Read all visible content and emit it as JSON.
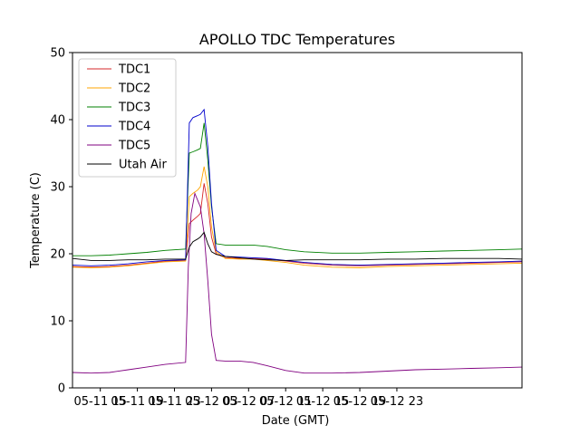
{
  "chart_data": {
    "type": "line",
    "title": "APOLLO TDC Temperatures",
    "xlabel": "Date (GMT)",
    "ylabel": "Temperature (C)",
    "xlim": [
      12,
      60.5
    ],
    "ylim": [
      0,
      50
    ],
    "x_unit": "hours since 05-11 00:00 GMT",
    "x_ticks": [
      {
        "value": 15,
        "label": "05-11 15"
      },
      {
        "value": 19,
        "label": "05-11 19"
      },
      {
        "value": 23,
        "label": "05-11 23"
      },
      {
        "value": 27,
        "label": "05-12 03"
      },
      {
        "value": 31,
        "label": "05-12 07"
      },
      {
        "value": 35,
        "label": "05-12 11"
      },
      {
        "value": 39,
        "label": "05-12 15"
      },
      {
        "value": 43,
        "label": "05-12 19"
      },
      {
        "value": 47,
        "label": "05-12 23"
      }
    ],
    "y_ticks": [
      0,
      10,
      20,
      30,
      40,
      50
    ],
    "legend_position": "top-left",
    "series": [
      {
        "name": "TDC1",
        "color": "#d62728",
        "x": [
          12,
          14,
          16,
          18,
          20,
          22,
          24.2,
          24.6,
          25,
          25.5,
          25.8,
          26.2,
          26.6,
          27,
          27.5,
          28.5,
          30,
          31.5,
          33,
          35,
          37,
          40,
          43,
          46,
          49,
          52,
          55,
          58,
          60.5
        ],
        "values": [
          18.1,
          18.0,
          18.1,
          18.3,
          18.6,
          18.9,
          19.0,
          24.5,
          25.0,
          25.6,
          26.0,
          30.5,
          27.5,
          22.5,
          20.0,
          19.4,
          19.3,
          19.3,
          19.2,
          18.9,
          18.6,
          18.3,
          18.2,
          18.3,
          18.4,
          18.5,
          18.6,
          18.7,
          18.8
        ]
      },
      {
        "name": "TDC2",
        "color": "#ffa500",
        "x": [
          12,
          14,
          16,
          18,
          20,
          22,
          24.2,
          24.6,
          25,
          25.5,
          25.8,
          26.2,
          26.6,
          27,
          27.5,
          28.5,
          30,
          31.5,
          33,
          35,
          37,
          40,
          43,
          46,
          49,
          52,
          55,
          58,
          60.5
        ],
        "values": [
          18.0,
          17.9,
          18.0,
          18.2,
          18.5,
          18.8,
          18.9,
          28.5,
          29.0,
          29.5,
          30.0,
          33.0,
          30.0,
          24.0,
          20.3,
          19.3,
          19.2,
          19.2,
          19.0,
          18.7,
          18.3,
          18.0,
          17.9,
          18.1,
          18.2,
          18.3,
          18.4,
          18.5,
          18.6
        ]
      },
      {
        "name": "TDC3",
        "color": "#008000",
        "x": [
          12,
          14,
          16,
          18,
          20,
          22,
          24.2,
          24.6,
          25,
          25.5,
          25.8,
          26.2,
          26.6,
          27,
          27.5,
          28.5,
          30,
          31.5,
          33,
          35,
          37,
          40,
          43,
          46,
          49,
          52,
          55,
          58,
          60.5
        ],
        "values": [
          19.7,
          19.7,
          19.8,
          20.0,
          20.2,
          20.5,
          20.7,
          35.0,
          35.2,
          35.5,
          35.7,
          39.5,
          34.0,
          27.0,
          21.5,
          21.3,
          21.3,
          21.3,
          21.1,
          20.6,
          20.3,
          20.1,
          20.1,
          20.2,
          20.3,
          20.4,
          20.5,
          20.6,
          20.7
        ]
      },
      {
        "name": "TDC4",
        "color": "#0000cd",
        "x": [
          12,
          14,
          16,
          18,
          20,
          22,
          24.2,
          24.6,
          25,
          25.5,
          25.8,
          26.2,
          26.6,
          27,
          27.5,
          28.5,
          30,
          31.5,
          33,
          35,
          37,
          40,
          43,
          46,
          49,
          52,
          55,
          58,
          60.5
        ],
        "values": [
          18.3,
          18.2,
          18.3,
          18.5,
          18.8,
          19.0,
          19.1,
          39.5,
          40.3,
          40.6,
          40.8,
          41.5,
          36.0,
          27.5,
          20.5,
          19.6,
          19.5,
          19.4,
          19.3,
          19.0,
          18.7,
          18.4,
          18.3,
          18.4,
          18.5,
          18.6,
          18.7,
          18.8,
          18.9
        ]
      },
      {
        "name": "TDC5",
        "color": "#800080",
        "x": [
          12,
          14,
          16,
          18,
          20,
          22,
          24.2,
          24.5,
          24.8,
          25.2,
          25.8,
          26.2,
          26.6,
          27,
          27.5,
          28.5,
          30,
          31.5,
          33,
          35,
          37,
          40,
          43,
          46,
          49,
          52,
          55,
          58,
          60.5
        ],
        "values": [
          2.3,
          2.2,
          2.3,
          2.7,
          3.1,
          3.5,
          3.8,
          18.0,
          26.0,
          29.0,
          27.0,
          23.0,
          16.0,
          8.0,
          4.1,
          4.0,
          4.0,
          3.8,
          3.3,
          2.6,
          2.2,
          2.2,
          2.3,
          2.5,
          2.7,
          2.8,
          2.9,
          3.0,
          3.1
        ]
      },
      {
        "name": "Utah Air",
        "color": "#000000",
        "x": [
          12,
          14,
          16,
          18,
          20,
          22,
          24.2,
          24.6,
          25,
          25.5,
          25.8,
          26.2,
          26.6,
          27,
          27.5,
          28.5,
          30,
          31.5,
          33,
          35,
          37,
          40,
          43,
          46,
          49,
          52,
          55,
          58,
          60.5
        ],
        "values": [
          19.3,
          19.0,
          19.0,
          19.1,
          19.1,
          19.2,
          19.2,
          21.0,
          21.8,
          22.2,
          22.5,
          23.2,
          21.5,
          20.3,
          19.9,
          19.6,
          19.4,
          19.2,
          19.1,
          19.0,
          19.1,
          19.1,
          19.1,
          19.2,
          19.2,
          19.3,
          19.3,
          19.3,
          19.2
        ]
      }
    ]
  }
}
